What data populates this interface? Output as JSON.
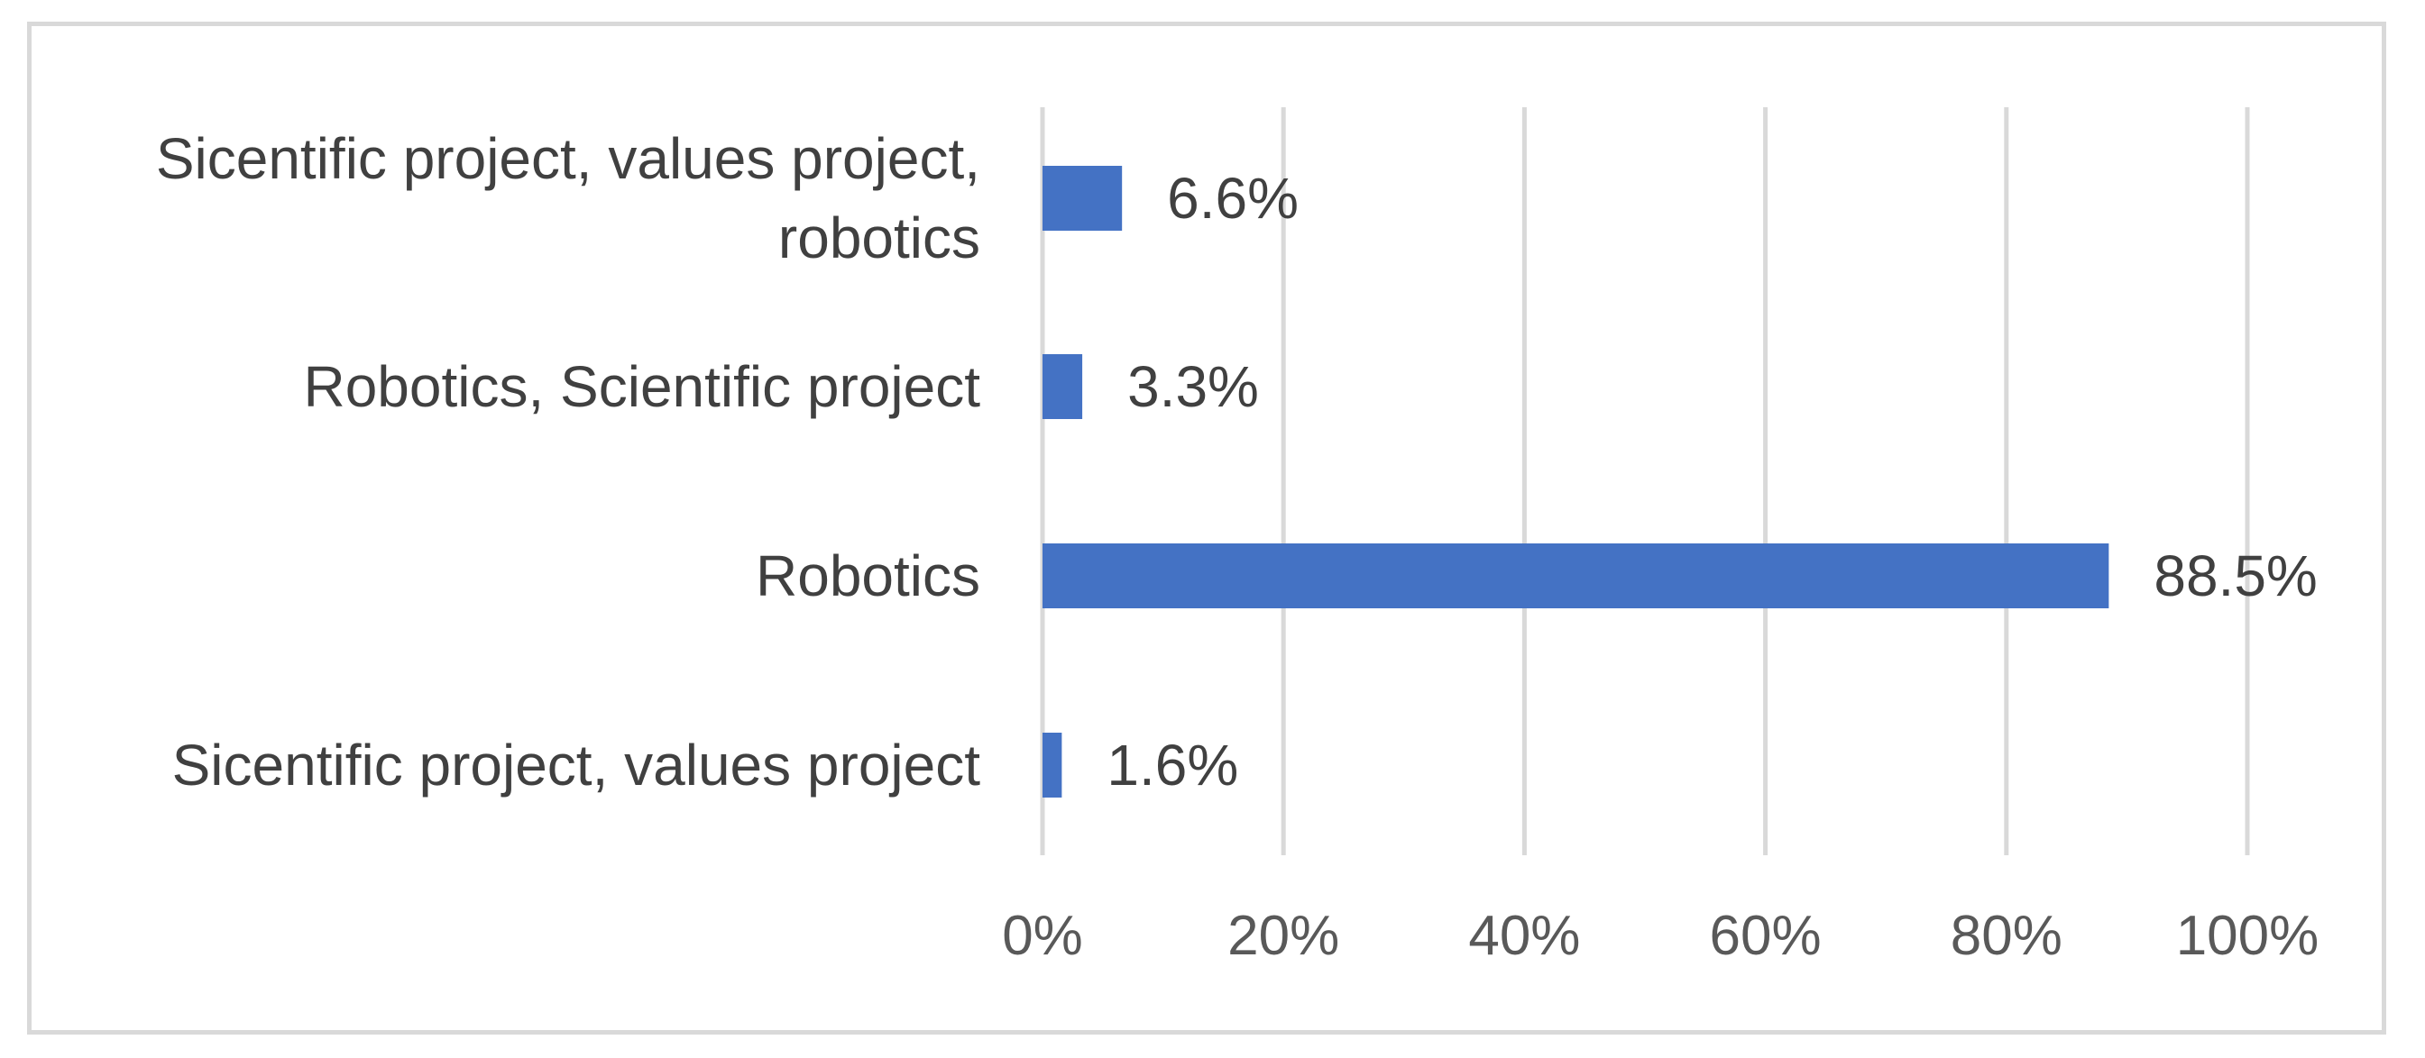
{
  "chart_data": {
    "type": "bar",
    "orientation": "horizontal",
    "title": "",
    "xlabel": "",
    "ylabel": "",
    "categories": [
      [
        "Sicentific project, values project,",
        "robotics"
      ],
      [
        "Robotics, Scientific project"
      ],
      [
        "Robotics"
      ],
      [
        "Sicentific project, values project"
      ]
    ],
    "values": [
      6.6,
      3.3,
      88.5,
      1.6
    ],
    "data_labels": [
      "6.6%",
      "3.3%",
      "88.5%",
      "1.6%"
    ],
    "xlim": [
      0,
      100
    ],
    "xticks": [
      0,
      20,
      40,
      60,
      80,
      100
    ],
    "xtick_labels": [
      "0%",
      "20%",
      "40%",
      "60%",
      "80%",
      "100%"
    ],
    "grid": "vertical",
    "legend": "none",
    "colors": {
      "bar": "#4472c4",
      "grid": "#d9d9d9",
      "frame": "#d9d9d9",
      "text": "#404040"
    }
  }
}
